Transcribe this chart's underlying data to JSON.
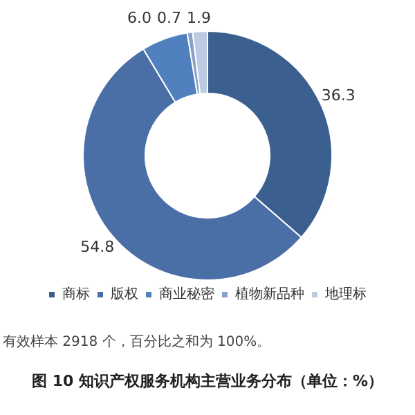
{
  "chart_data": {
    "type": "donut",
    "title": "图 10 知识产权服务机构主营业务分布（单位：%）",
    "categories": [
      "商标",
      "版权",
      "商业秘密",
      "植物新品种",
      "地理标"
    ],
    "values": [
      36.3,
      54.8,
      6.0,
      0.7,
      1.9
    ],
    "colors": [
      "#3b5f8e",
      "#4a6fa7",
      "#5080bd",
      "#86a2cc",
      "#bccbe2"
    ],
    "value_labels": [
      "36.3",
      "54.8",
      "6.0",
      "0.7",
      "1.9"
    ],
    "legend": "bottom",
    "annotations": [
      "有效样本 2918 个，百分比之和为 100%。"
    ]
  }
}
